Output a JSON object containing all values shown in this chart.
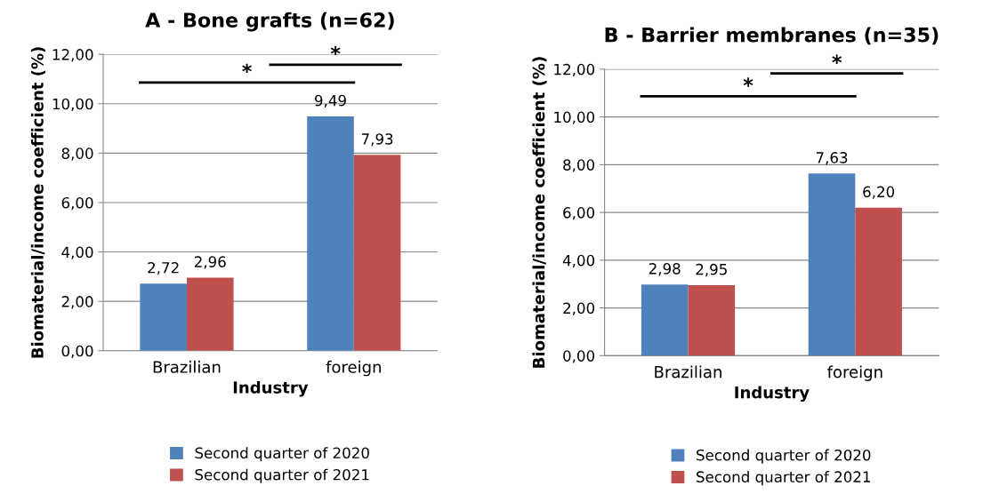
{
  "chart_data": [
    {
      "type": "bar",
      "title": "A - Bone grafts (n=62)",
      "xlabel": "Industry",
      "ylabel": "Biomaterial/income coefficient (%)",
      "categories": [
        "Brazilian",
        "foreign"
      ],
      "series": [
        {
          "name": "Second quarter of 2020",
          "color": "#4f81bd",
          "values": [
            2.72,
            9.49
          ],
          "value_labels": [
            "2,72",
            "9,49"
          ]
        },
        {
          "name": "Second quarter of 2021",
          "color": "#c0504d",
          "values": [
            2.96,
            7.93
          ],
          "value_labels": [
            "2,96",
            "7,93"
          ]
        }
      ],
      "ylim": [
        0,
        12
      ],
      "yticks": [
        {
          "value": 0,
          "label": "0,00"
        },
        {
          "value": 2,
          "label": "2,00"
        },
        {
          "value": 4,
          "label": "4,00"
        },
        {
          "value": 6,
          "label": "6,00"
        },
        {
          "value": 8,
          "label": "8,00"
        },
        {
          "value": 10,
          "label": "10,00"
        },
        {
          "value": 12,
          "label": "12,00"
        }
      ],
      "grid": "y",
      "legend": "bottom",
      "annotations": [
        "*",
        "*"
      ]
    },
    {
      "type": "bar",
      "title": "B - Barrier membranes (n=35)",
      "xlabel": "Industry",
      "ylabel": "Biomaterial/income coefficient (%)",
      "categories": [
        "Brazilian",
        "foreign"
      ],
      "series": [
        {
          "name": "Second quarter of 2020",
          "color": "#4f81bd",
          "values": [
            2.98,
            7.63
          ],
          "value_labels": [
            "2,98",
            "7,63"
          ]
        },
        {
          "name": "Second quarter of 2021",
          "color": "#c0504d",
          "values": [
            2.95,
            6.2
          ],
          "value_labels": [
            "2,95",
            "6,20"
          ]
        }
      ],
      "ylim": [
        0,
        12
      ],
      "yticks": [
        {
          "value": 0,
          "label": "0,00"
        },
        {
          "value": 2,
          "label": "2,00"
        },
        {
          "value": 4,
          "label": "4,00"
        },
        {
          "value": 6,
          "label": "6,00"
        },
        {
          "value": 8,
          "label": "8,00"
        },
        {
          "value": 10,
          "label": "10,00"
        },
        {
          "value": 12,
          "label": "12,00"
        }
      ],
      "grid": "y",
      "legend": "bottom",
      "annotations": [
        "*",
        "*"
      ]
    }
  ]
}
